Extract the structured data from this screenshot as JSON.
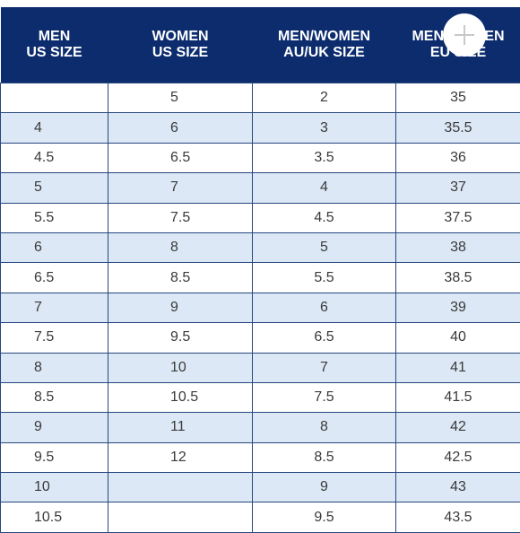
{
  "table": {
    "header": [
      [
        "MEN",
        "US SIZE"
      ],
      [
        "WOMEN",
        "US SIZE"
      ],
      [
        "MEN/WOMEN",
        "AU/UK SIZE"
      ],
      [
        "MEN/WOMEN",
        "EU SIZE"
      ]
    ],
    "rows": [
      [
        null,
        "5",
        "2",
        "35"
      ],
      [
        "4",
        "6",
        "3",
        "35.5"
      ],
      [
        "4.5",
        "6.5",
        "3.5",
        "36"
      ],
      [
        "5",
        "7",
        "4",
        "37"
      ],
      [
        "5.5",
        "7.5",
        "4.5",
        "37.5"
      ],
      [
        "6",
        "8",
        "5",
        "38"
      ],
      [
        "6.5",
        "8.5",
        "5.5",
        "38.5"
      ],
      [
        "7",
        "9",
        "6",
        "39"
      ],
      [
        "7.5",
        "9.5",
        "6.5",
        "40"
      ],
      [
        "8",
        "10",
        "7",
        "41"
      ],
      [
        "8.5",
        "10.5",
        "7.5",
        "41.5"
      ],
      [
        "9",
        "11",
        "8",
        "42"
      ],
      [
        "9.5",
        "12",
        "8.5",
        "42.5"
      ],
      [
        "10",
        null,
        "9",
        "43"
      ],
      [
        "10.5",
        null,
        "9.5",
        "43.5"
      ]
    ]
  }
}
